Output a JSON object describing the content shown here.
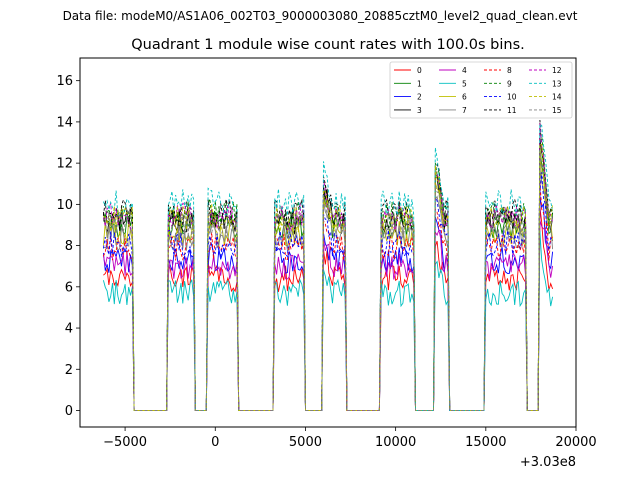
{
  "figure": {
    "suptitle": "Data file: modeM0/AS1A06_002T03_9000003080_20885cztM0_level2_quad_clean.evt"
  },
  "chart_data": {
    "type": "line",
    "title": "Quadrant 1 module wise count rates with 100.0s bins.",
    "xlabel": "",
    "ylabel": "",
    "x_offset_label": "+3.03e8",
    "xlim": [
      -7500,
      20000
    ],
    "ylim": [
      -0.8,
      17.1
    ],
    "x_ticks": [
      -5000,
      0,
      5000,
      10000,
      15000,
      20000
    ],
    "x_tick_labels": [
      "−5000",
      "0",
      "5000",
      "10000",
      "15000",
      "20000"
    ],
    "y_ticks": [
      0,
      2,
      4,
      6,
      8,
      10,
      12,
      14,
      16
    ],
    "y_tick_labels": [
      "0",
      "2",
      "4",
      "6",
      "8",
      "10",
      "12",
      "14",
      "16"
    ],
    "bin_seconds": 100,
    "x_start": -6200,
    "x_end": 18700,
    "legend_position": "upper-right",
    "legend_columns": 4,
    "on_intervals": [
      [
        -6200,
        -4600
      ],
      [
        -2600,
        -1200
      ],
      [
        -400,
        1200
      ],
      [
        3300,
        4900
      ],
      [
        6000,
        7200
      ],
      [
        9200,
        11000
      ],
      [
        12200,
        12900
      ],
      [
        15000,
        17200
      ],
      [
        18000,
        18700
      ]
    ],
    "series": [
      {
        "name": "0",
        "level": 6.4,
        "color": "#ff0000",
        "dash": "solid"
      },
      {
        "name": "1",
        "level": 9.0,
        "color": "#008000",
        "dash": "solid"
      },
      {
        "name": "2",
        "level": 7.3,
        "color": "#0000ff",
        "dash": "solid"
      },
      {
        "name": "3",
        "level": 9.2,
        "color": "#000000",
        "dash": "solid"
      },
      {
        "name": "4",
        "level": 7.0,
        "color": "#bf00bf",
        "dash": "solid"
      },
      {
        "name": "5",
        "level": 5.7,
        "color": "#00bfbf",
        "dash": "solid"
      },
      {
        "name": "6",
        "level": 8.6,
        "color": "#bfbf00",
        "dash": "solid"
      },
      {
        "name": "7",
        "level": 8.4,
        "color": "#808080",
        "dash": "solid"
      },
      {
        "name": "8",
        "level": 7.9,
        "color": "#ff0000",
        "dash": "dashed"
      },
      {
        "name": "9",
        "level": 9.5,
        "color": "#008000",
        "dash": "dashed"
      },
      {
        "name": "10",
        "level": 8.1,
        "color": "#0000ff",
        "dash": "dashed"
      },
      {
        "name": "11",
        "level": 9.6,
        "color": "#000000",
        "dash": "dashed"
      },
      {
        "name": "12",
        "level": 9.4,
        "color": "#bf00bf",
        "dash": "dashed"
      },
      {
        "name": "13",
        "level": 10.1,
        "color": "#00bfbf",
        "dash": "dashed"
      },
      {
        "name": "14",
        "level": 9.3,
        "color": "#bfbf00",
        "dash": "dashed"
      },
      {
        "name": "15",
        "level": 9.0,
        "color": "#808080",
        "dash": "dashed"
      }
    ],
    "interval_boosts": [
      0,
      0,
      0.3,
      0,
      2.0,
      0,
      3.3,
      0,
      4.6
    ]
  }
}
